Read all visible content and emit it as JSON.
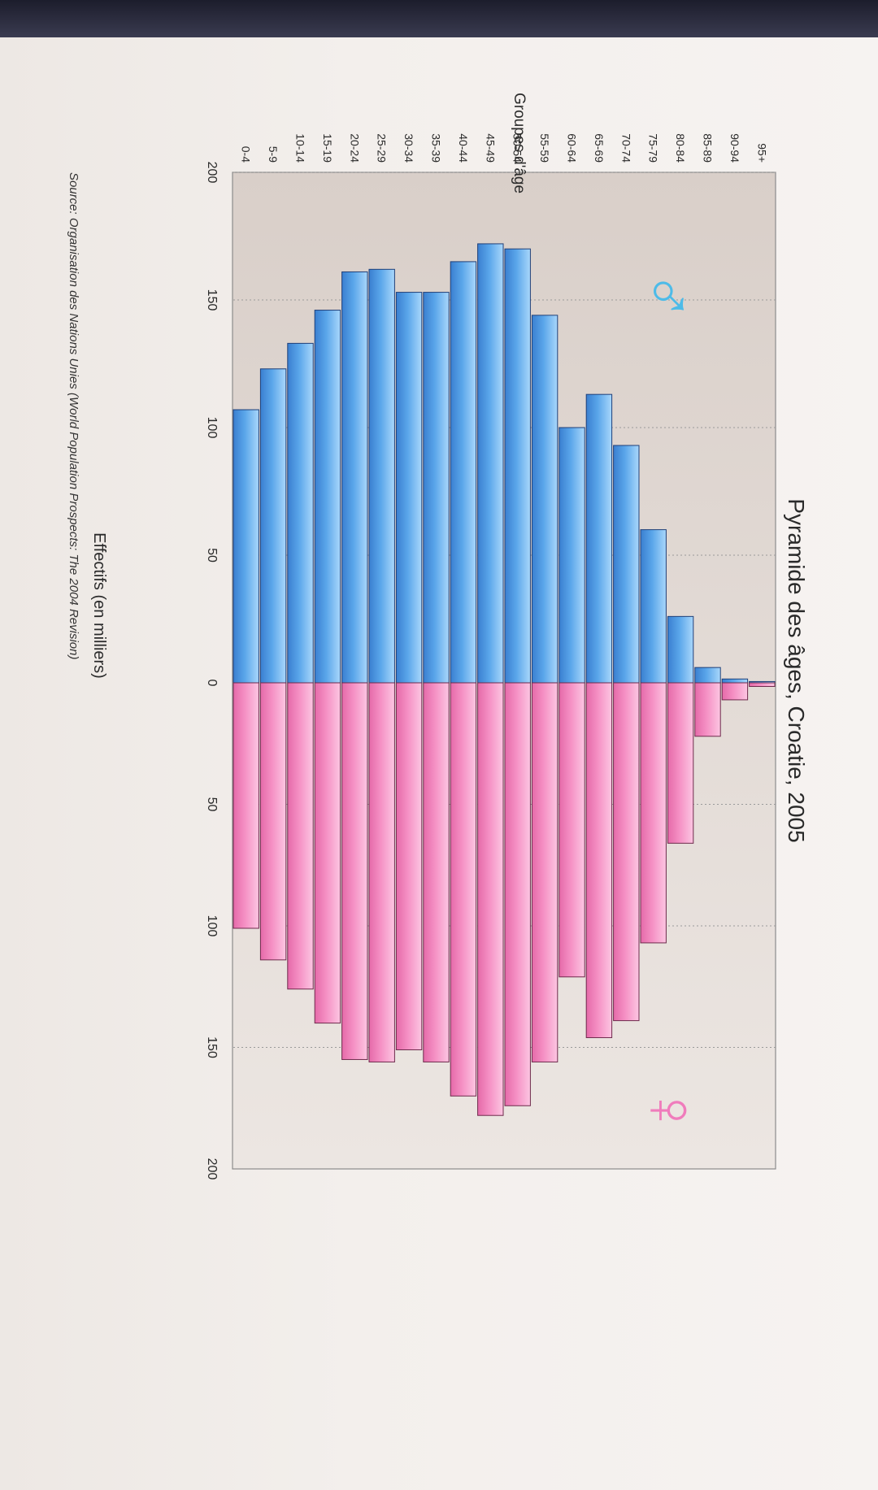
{
  "chart_data": {
    "type": "bar",
    "title": "Pyramide des âges, Croatie, 2005",
    "xlabel": "Effectifs (en milliers)",
    "ylabel": "Groupes d'âge",
    "source": "Source: Organisation des Nations Unies (World Population Prospects: The 2004 Revision)",
    "xlim_left": [
      200,
      0
    ],
    "xlim_right": [
      0,
      200
    ],
    "x_ticks_left": [
      "200",
      "150",
      "100",
      "50",
      "0"
    ],
    "x_ticks_right": [
      "50",
      "100",
      "150",
      "200"
    ],
    "grid": true,
    "categories": [
      "95+",
      "90-94",
      "85-89",
      "80-84",
      "75-79",
      "70-74",
      "65-69",
      "60-64",
      "55-59",
      "50-54",
      "45-49",
      "40-44",
      "35-39",
      "30-34",
      "25-29",
      "20-24",
      "15-19",
      "10-14",
      "5-9",
      "0-4"
    ],
    "series": [
      {
        "name": "♂",
        "color": "#4e9be6",
        "values": [
          0.5,
          1.5,
          6,
          26,
          60,
          93,
          113,
          100,
          144,
          170,
          172,
          165,
          153,
          153,
          162,
          161,
          146,
          133,
          123,
          107
        ]
      },
      {
        "name": "♀",
        "color": "#f08cc0",
        "values": [
          1.5,
          7,
          22,
          66,
          107,
          139,
          146,
          121,
          156,
          174,
          178,
          170,
          156,
          151,
          156,
          155,
          140,
          126,
          114,
          101
        ]
      }
    ],
    "legend": [
      "♂",
      "♀"
    ]
  }
}
